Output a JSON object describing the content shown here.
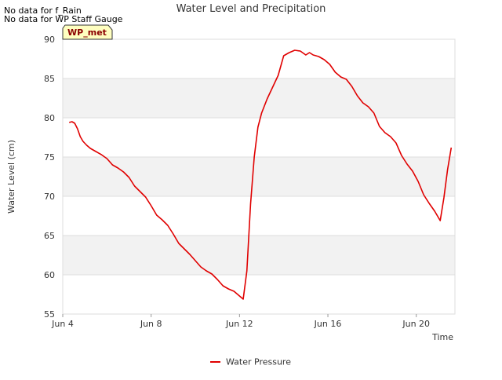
{
  "notes": [
    "No data for f_Rain",
    "No data for WP Staff Gauge"
  ],
  "station_badge": "WP_met",
  "colors": {
    "series": "#e00000",
    "band": "#f2f2f2",
    "grid": "#dddddd",
    "badge_fill": "#ffffc0",
    "badge_text": "#8b0000",
    "text": "#333333"
  },
  "chart_data": {
    "type": "line",
    "title": "Water Level and Precipitation",
    "xlabel": "Time",
    "ylabel": "Water Level (cm)",
    "ylim": [
      55,
      90
    ],
    "yticks": [
      55,
      60,
      65,
      70,
      75,
      80,
      85,
      90
    ],
    "xlim": [
      "2024-06-04",
      "2024-06-21T18:00"
    ],
    "xticks": [
      {
        "value": "2024-06-04",
        "label": "Jun 4"
      },
      {
        "value": "2024-06-08",
        "label": "Jun 8"
      },
      {
        "value": "2024-06-12",
        "label": "Jun 12"
      },
      {
        "value": "2024-06-16",
        "label": "Jun 16"
      },
      {
        "value": "2024-06-20",
        "label": "Jun 20"
      }
    ],
    "grid": "alternating horizontal bands",
    "legend_position": "bottom-center",
    "series": [
      {
        "name": "Water Pressure",
        "points": [
          [
            "2024-06-04T07:00",
            79.4
          ],
          [
            "2024-06-04T10:00",
            79.5
          ],
          [
            "2024-06-04T13:00",
            79.3
          ],
          [
            "2024-06-04T16:00",
            78.6
          ],
          [
            "2024-06-04T19:00",
            77.6
          ],
          [
            "2024-06-04T22:00",
            77.0
          ],
          [
            "2024-06-05T02:00",
            76.5
          ],
          [
            "2024-06-05T06:00",
            76.1
          ],
          [
            "2024-06-05T12:00",
            75.7
          ],
          [
            "2024-06-05T18:00",
            75.3
          ],
          [
            "2024-06-06T00:00",
            74.8
          ],
          [
            "2024-06-06T06:00",
            74.0
          ],
          [
            "2024-06-06T12:00",
            73.6
          ],
          [
            "2024-06-06T18:00",
            73.1
          ],
          [
            "2024-06-07T00:00",
            72.4
          ],
          [
            "2024-06-07T06:00",
            71.3
          ],
          [
            "2024-06-07T12:00",
            70.6
          ],
          [
            "2024-06-07T18:00",
            69.9
          ],
          [
            "2024-06-08T00:00",
            68.8
          ],
          [
            "2024-06-08T06:00",
            67.6
          ],
          [
            "2024-06-08T12:00",
            67.0
          ],
          [
            "2024-06-08T18:00",
            66.3
          ],
          [
            "2024-06-09T00:00",
            65.2
          ],
          [
            "2024-06-09T06:00",
            64.0
          ],
          [
            "2024-06-09T12:00",
            63.3
          ],
          [
            "2024-06-09T18:00",
            62.6
          ],
          [
            "2024-06-10T00:00",
            61.8
          ],
          [
            "2024-06-10T06:00",
            61.0
          ],
          [
            "2024-06-10T12:00",
            60.5
          ],
          [
            "2024-06-10T18:00",
            60.1
          ],
          [
            "2024-06-11T00:00",
            59.4
          ],
          [
            "2024-06-11T06:00",
            58.6
          ],
          [
            "2024-06-11T12:00",
            58.2
          ],
          [
            "2024-06-11T18:00",
            57.9
          ],
          [
            "2024-06-12T00:00",
            57.3
          ],
          [
            "2024-06-12T04:00",
            56.9
          ],
          [
            "2024-06-12T08:00",
            60.5
          ],
          [
            "2024-06-12T12:00",
            69.0
          ],
          [
            "2024-06-12T16:00",
            75.0
          ],
          [
            "2024-06-12T20:00",
            78.8
          ],
          [
            "2024-06-13T00:00",
            80.6
          ],
          [
            "2024-06-13T06:00",
            82.4
          ],
          [
            "2024-06-13T12:00",
            83.9
          ],
          [
            "2024-06-13T18:00",
            85.4
          ],
          [
            "2024-06-14T00:00",
            87.9
          ],
          [
            "2024-06-14T06:00",
            88.3
          ],
          [
            "2024-06-14T12:00",
            88.6
          ],
          [
            "2024-06-14T18:00",
            88.5
          ],
          [
            "2024-06-15T00:00",
            88.0
          ],
          [
            "2024-06-15T04:00",
            88.3
          ],
          [
            "2024-06-15T08:00",
            88.0
          ],
          [
            "2024-06-15T14:00",
            87.8
          ],
          [
            "2024-06-15T20:00",
            87.4
          ],
          [
            "2024-06-16T02:00",
            86.8
          ],
          [
            "2024-06-16T08:00",
            85.8
          ],
          [
            "2024-06-16T14:00",
            85.2
          ],
          [
            "2024-06-16T20:00",
            84.9
          ],
          [
            "2024-06-17T02:00",
            84.0
          ],
          [
            "2024-06-17T08:00",
            82.8
          ],
          [
            "2024-06-17T14:00",
            81.9
          ],
          [
            "2024-06-17T20:00",
            81.4
          ],
          [
            "2024-06-18T02:00",
            80.6
          ],
          [
            "2024-06-18T08:00",
            78.9
          ],
          [
            "2024-06-18T14:00",
            78.1
          ],
          [
            "2024-06-18T20:00",
            77.6
          ],
          [
            "2024-06-19T02:00",
            76.8
          ],
          [
            "2024-06-19T08:00",
            75.2
          ],
          [
            "2024-06-19T14:00",
            74.1
          ],
          [
            "2024-06-19T20:00",
            73.2
          ],
          [
            "2024-06-20T02:00",
            71.9
          ],
          [
            "2024-06-20T08:00",
            70.2
          ],
          [
            "2024-06-20T14:00",
            69.1
          ],
          [
            "2024-06-20T20:00",
            68.1
          ],
          [
            "2024-06-21T02:00",
            66.9
          ],
          [
            "2024-06-21T06:00",
            69.8
          ],
          [
            "2024-06-21T10:00",
            73.4
          ],
          [
            "2024-06-21T14:00",
            76.2
          ]
        ]
      }
    ]
  }
}
